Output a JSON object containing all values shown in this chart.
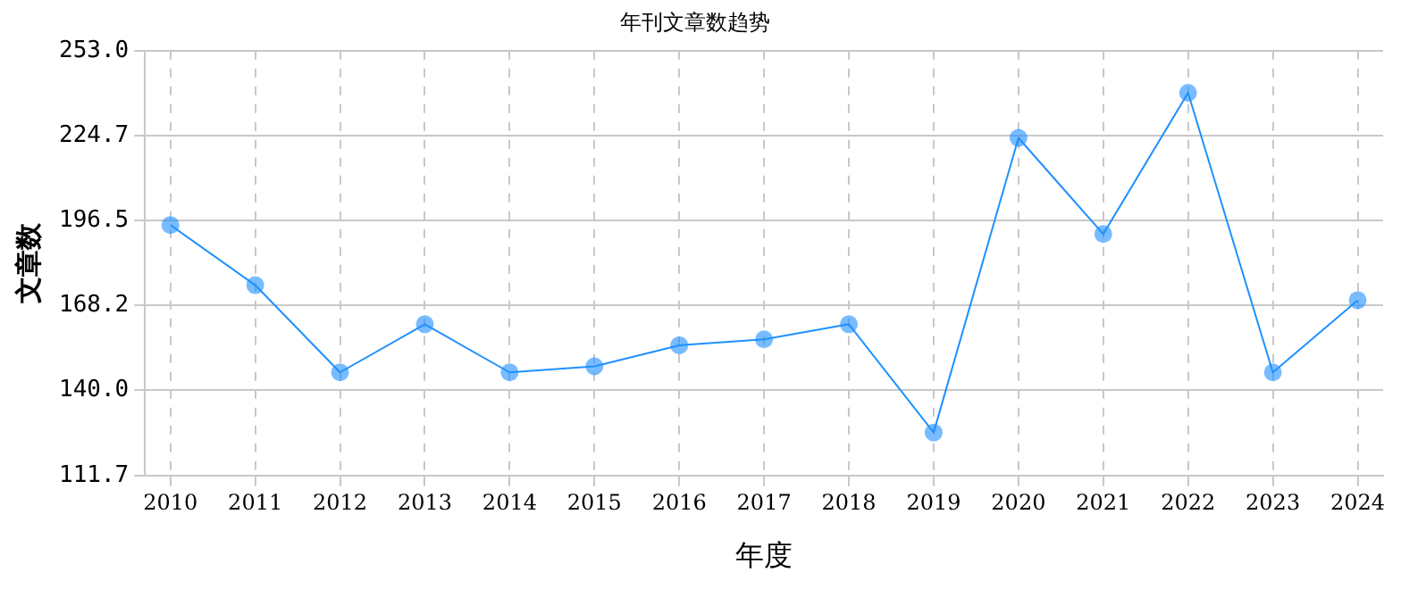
{
  "chart_data": {
    "type": "line",
    "title": "年刊文章数趋势",
    "xlabel": "年度",
    "ylabel": "文章数",
    "x": [
      2010,
      2011,
      2012,
      2013,
      2014,
      2015,
      2016,
      2017,
      2018,
      2019,
      2020,
      2021,
      2022,
      2023,
      2024
    ],
    "series": [
      {
        "color": "#1e90ff",
        "values": [
          195,
          175,
          146,
          162,
          146,
          148,
          155,
          157,
          162,
          126,
          224,
          192,
          239,
          146,
          170
        ]
      }
    ],
    "xlim": [
      2009.7,
      2024.3
    ],
    "xticks": [
      2010,
      2011,
      2012,
      2013,
      2014,
      2015,
      2016,
      2017,
      2018,
      2019,
      2020,
      2021,
      2022,
      2023,
      2024
    ],
    "ylim": [
      111.7,
      253
    ],
    "yticks": [
      {
        "value": 111.7,
        "label": "111.7"
      },
      {
        "value": 140,
        "label": "140.0"
      },
      {
        "value": 168.2,
        "label": "168.2"
      },
      {
        "value": 196.5,
        "label": "196.5"
      },
      {
        "value": 224.7,
        "label": "224.7"
      },
      {
        "value": 253,
        "label": "253.0"
      }
    ],
    "grid": true,
    "legend": false,
    "marker": "circle",
    "line_style": "solid"
  }
}
